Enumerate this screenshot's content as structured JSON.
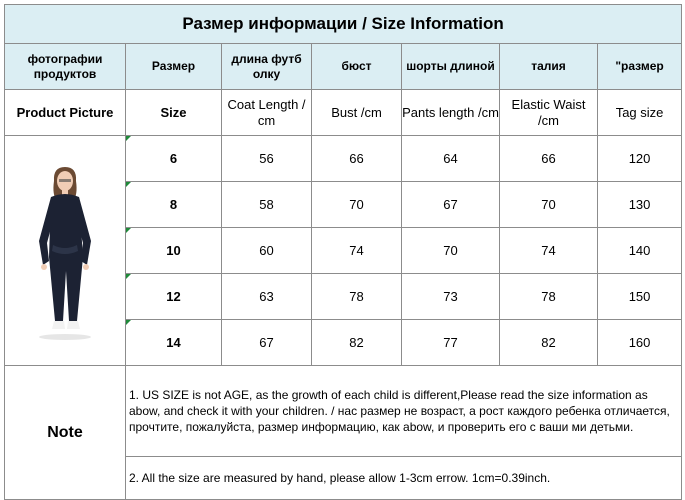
{
  "title": "Размер информации / Size Information",
  "header_ru": [
    "фотографии продуктов",
    "Размер",
    "длина футб олку",
    "бюст",
    "шорты длиной",
    "талия",
    "\"размер"
  ],
  "header_en": [
    "Product Picture",
    "Size",
    "Coat Length / cm",
    "Bust /cm",
    "Pants length /cm",
    "Elastic Waist /cm",
    "Tag size"
  ],
  "rows": [
    {
      "size": "6",
      "coat": "56",
      "bust": "66",
      "pants": "64",
      "waist": "66",
      "tag": "120"
    },
    {
      "size": "8",
      "coat": "58",
      "bust": "70",
      "pants": "67",
      "waist": "70",
      "tag": "130"
    },
    {
      "size": "10",
      "coat": "60",
      "bust": "74",
      "pants": "70",
      "waist": "74",
      "tag": "140"
    },
    {
      "size": "12",
      "coat": "63",
      "bust": "78",
      "pants": "73",
      "waist": "78",
      "tag": "150"
    },
    {
      "size": "14",
      "coat": "67",
      "bust": "82",
      "pants": "77",
      "waist": "82",
      "tag": "160"
    }
  ],
  "note": {
    "label": "Note",
    "line1": "1. US SIZE is not AGE, as the growth of each child is different,Please read the size information as abow,   and check it with your children. /  нас размер не возраст, а рост каждого ребенка отличается, прочтите, пожалуйста, размер информацию, как abow, и проверить его с ваши ми детьми.",
    "line2": "2. All the size are measured by hand, please allow 1-3cm errow. 1cm=0.39inch."
  },
  "colors": {
    "header_bg": "#dbeef3",
    "border": "#8c8c8c",
    "corner_mark": "#1f8a3a",
    "garment": "#1c2233"
  }
}
